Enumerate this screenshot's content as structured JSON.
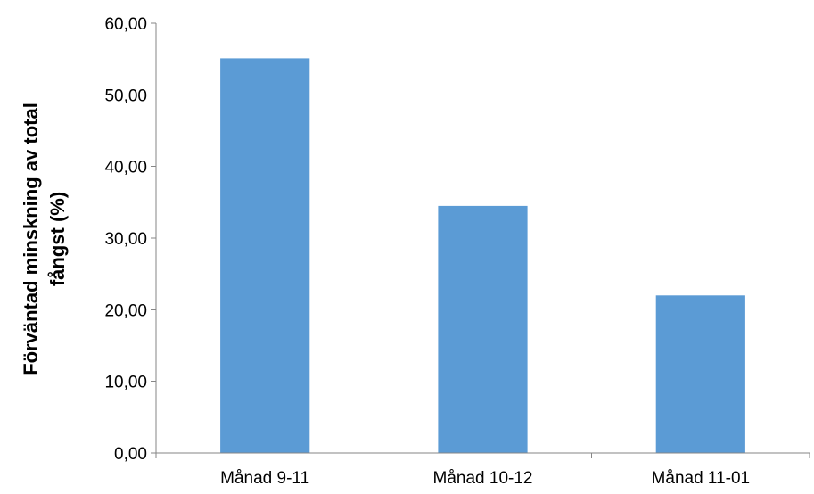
{
  "chart_data": {
    "type": "bar",
    "title": "",
    "xlabel": "",
    "ylabel_lines": [
      "Förväntad minskning av total",
      "fångst (%)"
    ],
    "categories": [
      "Månad 9-11",
      "Månad 10-12",
      "Månad 11-01"
    ],
    "values": [
      55.1,
      34.5,
      22.0
    ],
    "ylim": [
      0,
      60
    ],
    "yticks": [
      "0,00",
      "10,00",
      "20,00",
      "30,00",
      "40,00",
      "50,00",
      "60,00"
    ],
    "grid": false,
    "legend": "none",
    "bar_color": "#5B9BD5"
  }
}
